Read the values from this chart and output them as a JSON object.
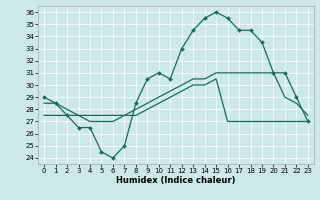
{
  "xlabel": "Humidex (Indice chaleur)",
  "bg_color": "#cce8e8",
  "line_color": "#1a6b5a",
  "xlim": [
    -0.5,
    23.5
  ],
  "ylim": [
    23.5,
    36.5
  ],
  "yticks": [
    24,
    25,
    26,
    27,
    28,
    29,
    30,
    31,
    32,
    33,
    34,
    35,
    36
  ],
  "xticks": [
    0,
    1,
    2,
    3,
    4,
    5,
    6,
    7,
    8,
    9,
    10,
    11,
    12,
    13,
    14,
    15,
    16,
    17,
    18,
    19,
    20,
    21,
    22,
    23
  ],
  "line1_x": [
    0,
    1,
    2,
    3,
    4,
    5,
    6,
    7,
    8,
    9,
    10,
    11,
    12,
    13,
    14,
    15,
    16,
    17,
    18,
    19,
    20,
    21,
    22,
    23
  ],
  "line1_y": [
    29.0,
    28.5,
    27.5,
    26.5,
    26.5,
    24.5,
    24.0,
    25.0,
    28.5,
    30.5,
    31.0,
    30.5,
    33.0,
    34.5,
    35.5,
    36.0,
    35.5,
    34.5,
    34.5,
    33.5,
    31.0,
    31.0,
    29.0,
    27.0
  ],
  "line2_x": [
    0,
    1,
    2,
    3,
    4,
    5,
    6,
    7,
    8,
    9,
    10,
    11,
    12,
    13,
    14,
    15,
    16,
    17,
    18,
    19,
    20,
    21,
    22,
    23
  ],
  "line2_y": [
    27.5,
    27.5,
    27.5,
    27.5,
    27.5,
    27.5,
    27.5,
    27.5,
    27.5,
    28.0,
    28.5,
    29.0,
    29.5,
    30.0,
    30.0,
    30.5,
    27.0,
    27.0,
    27.0,
    27.0,
    27.0,
    27.0,
    27.0,
    27.0
  ],
  "line3_x": [
    0,
    1,
    2,
    3,
    4,
    5,
    6,
    7,
    8,
    9,
    10,
    11,
    12,
    13,
    14,
    15,
    16,
    17,
    18,
    19,
    20,
    21,
    22,
    23
  ],
  "line3_y": [
    28.5,
    28.5,
    28.0,
    27.5,
    27.0,
    27.0,
    27.0,
    27.5,
    28.0,
    28.5,
    29.0,
    29.5,
    30.0,
    30.5,
    30.5,
    31.0,
    31.0,
    31.0,
    31.0,
    31.0,
    31.0,
    29.0,
    28.5,
    27.5
  ]
}
